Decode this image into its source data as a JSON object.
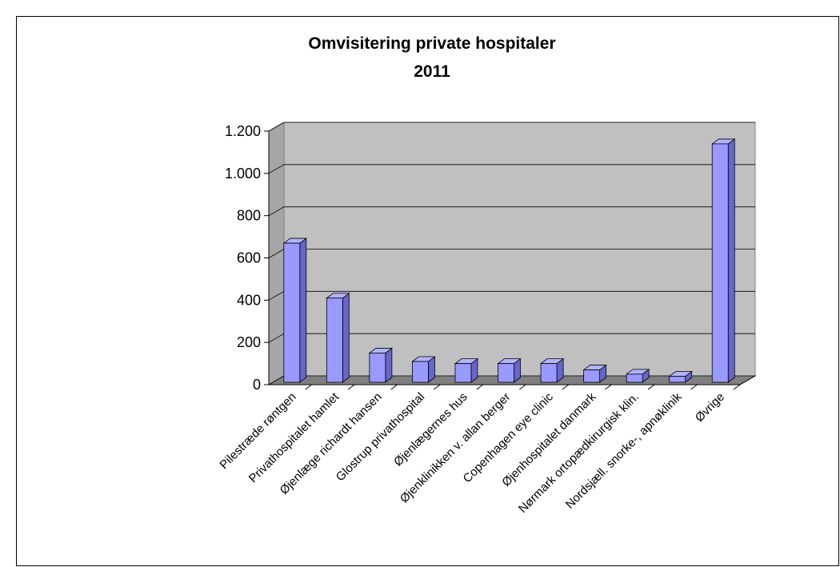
{
  "chart_data": {
    "type": "bar3d",
    "title": "Omvisitering private hospitaler",
    "subtitle": "2011",
    "categories": [
      "Pilestræde røntgen",
      "Privathospitalet hamlet",
      "Øjenlæge richardt hansen",
      "Glostrup privathospital",
      "Øjenlægernes hus",
      "Øjenklinikken v. allan berger",
      "Copenhagen eye clinic",
      "Øjenhospitalet danmark",
      "Nørmark ortopædkirurgisk klin.",
      "Nordsjæll. snorke-, apnøklinik",
      "Øvrige"
    ],
    "values": [
      700,
      440,
      180,
      140,
      130,
      130,
      130,
      100,
      80,
      70,
      1170
    ],
    "color": "#9999ff",
    "ylim": [
      0,
      1200
    ],
    "yticks": [
      0,
      200,
      400,
      600,
      800,
      {
        "value": 1000,
        "label": "1.000"
      },
      {
        "value": 1200,
        "label": "1.200"
      }
    ],
    "grid": true
  }
}
